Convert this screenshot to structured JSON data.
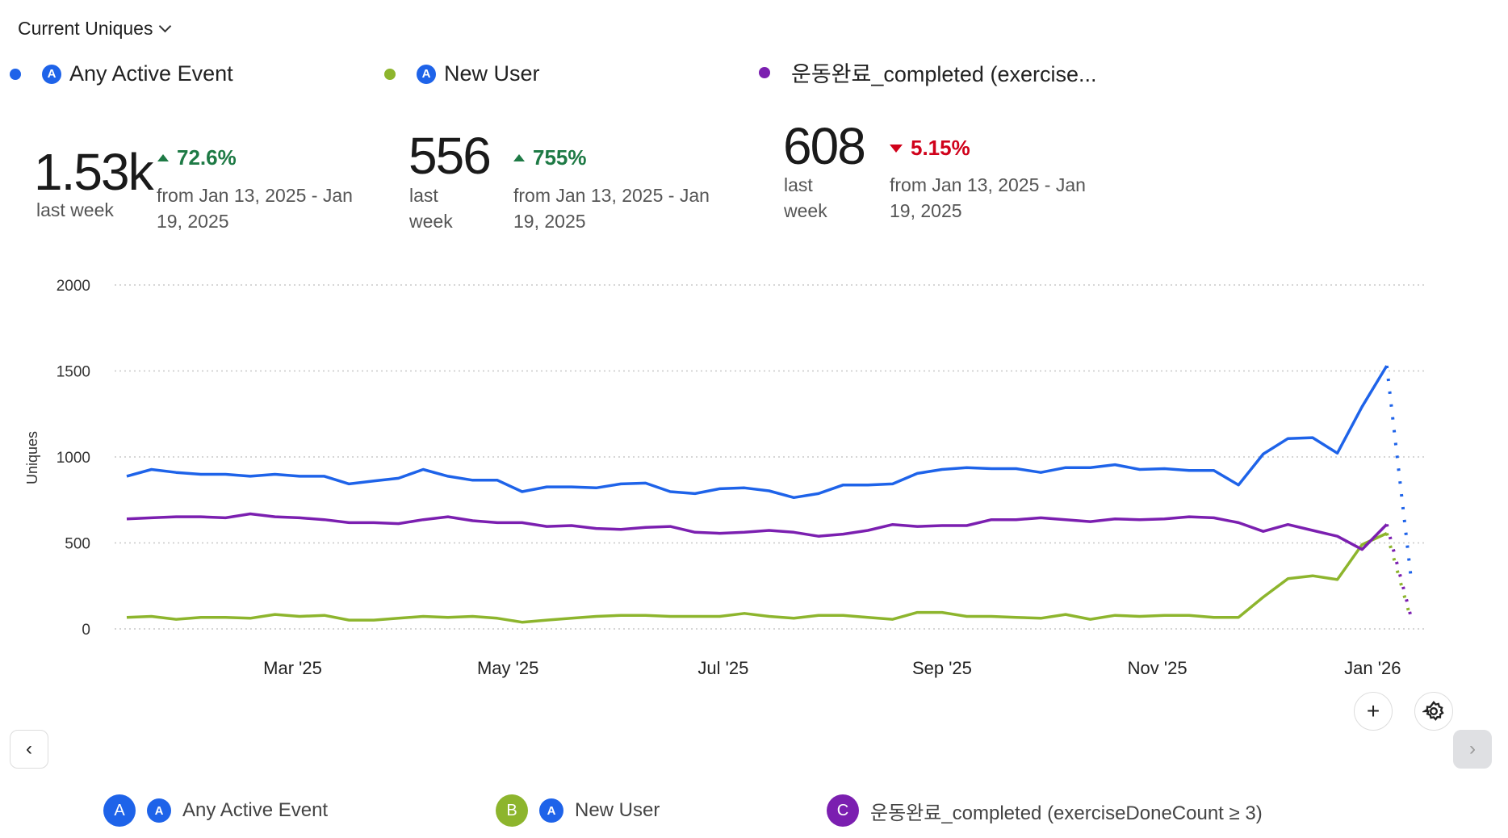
{
  "metric_select": {
    "label": "Current Uniques"
  },
  "legend_top": [
    {
      "label": "Any Active Event",
      "color": "#1e63e9",
      "icon": "amplitude-event-icon"
    },
    {
      "label": "New User",
      "color": "#8db52d",
      "icon": "amplitude-event-icon"
    },
    {
      "label": "운동완료_completed (exercise...",
      "color": "#7b1fb0"
    }
  ],
  "summary": [
    {
      "value": "1.53k",
      "period": "last week",
      "change": "72.6%",
      "direction": "up",
      "compare": "from Jan 13, 2025 - Jan 19, 2025"
    },
    {
      "value": "556",
      "period": "last week",
      "change": "755%",
      "direction": "up",
      "compare": "from Jan 13, 2025 - Jan 19, 2025"
    },
    {
      "value": "608",
      "period": "last week",
      "change": "5.15%",
      "direction": "down",
      "compare": "from Jan 13, 2025 - Jan 19, 2025"
    }
  ],
  "chart_data": {
    "type": "line",
    "title": "",
    "xlabel": "",
    "ylabel": "Uniques",
    "ylim": [
      0,
      2000
    ],
    "yticks": [
      "0",
      "500",
      "1000",
      "1500",
      "2000"
    ],
    "xticks": [
      {
        "label": "Mar '25",
        "date": "2025-03-01"
      },
      {
        "label": "May '25",
        "date": "2025-05-01"
      },
      {
        "label": "Jul '25",
        "date": "2025-07-01"
      },
      {
        "label": "Sep '25",
        "date": "2025-09-01"
      },
      {
        "label": "Nov '25",
        "date": "2025-11-01"
      },
      {
        "label": "Jan '26",
        "date": "2026-01-01"
      }
    ],
    "x_start": "2025-01-13",
    "interval_days": 7,
    "grid": true,
    "series": [
      {
        "name": "Any Active Event",
        "color": "#1e63e9",
        "values": [
          888,
          927,
          910,
          899,
          899,
          888,
          899,
          888,
          888,
          843,
          860,
          876,
          927,
          888,
          865,
          865,
          798,
          826,
          826,
          820,
          843,
          848,
          798,
          787,
          815,
          820,
          803,
          764,
          787,
          837,
          837,
          843,
          904,
          927,
          938,
          932,
          932,
          910,
          938,
          938,
          955,
          927,
          932,
          921,
          921,
          837,
          1017,
          1107,
          1112,
          1022,
          1292,
          1530
        ],
        "projected": 300
      },
      {
        "name": "New User",
        "color": "#8db52d",
        "values": [
          67,
          73,
          56,
          67,
          67,
          62,
          84,
          73,
          79,
          51,
          51,
          62,
          73,
          67,
          73,
          62,
          39,
          51,
          62,
          73,
          79,
          79,
          73,
          73,
          73,
          90,
          73,
          62,
          79,
          79,
          67,
          56,
          96,
          96,
          73,
          73,
          67,
          62,
          84,
          56,
          79,
          73,
          79,
          79,
          67,
          67,
          185,
          292,
          309,
          287,
          490,
          556
        ],
        "projected": 55
      },
      {
        "name": "운동완료_completed (exerciseDoneCount ≥ 3)",
        "color": "#7b1fb0",
        "values": [
          640,
          646,
          652,
          652,
          646,
          669,
          652,
          646,
          635,
          618,
          618,
          612,
          635,
          652,
          629,
          618,
          618,
          596,
          601,
          584,
          579,
          590,
          596,
          562,
          556,
          562,
          573,
          562,
          539,
          551,
          573,
          607,
          596,
          601,
          601,
          635,
          635,
          646,
          635,
          624,
          640,
          635,
          640,
          652,
          646,
          618,
          567,
          607,
          573,
          539,
          462,
          608
        ],
        "projected": 70
      }
    ]
  },
  "legend_bottom": [
    {
      "badge": "A",
      "label": "Any Active Event",
      "color": "#1e63e9"
    },
    {
      "badge": "B",
      "label": "New User",
      "color": "#8db52d"
    },
    {
      "badge": "C",
      "label": "운동완료_completed (exerciseDoneCount ≥ 3)",
      "color": "#7b1fb0"
    }
  ],
  "controls": {
    "add": "+",
    "prev": "‹",
    "next": "›"
  }
}
